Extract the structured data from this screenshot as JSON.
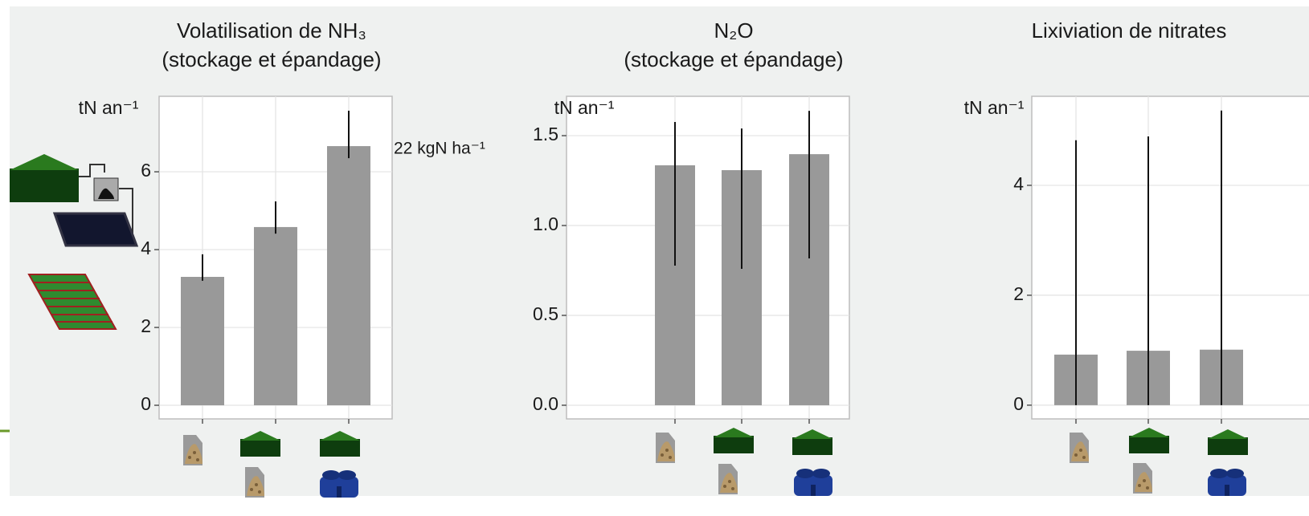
{
  "chart_data": [
    {
      "type": "bar",
      "title": "Volatilisation de NH₃",
      "subtitle": "(stockage et épandage)",
      "ylabel": "tN an⁻¹",
      "annotation": "22 kgN ha⁻¹",
      "categories": [
        null,
        null,
        null
      ],
      "values": [
        3.3,
        4.58,
        6.66
      ],
      "lower": [
        3.2,
        4.41,
        6.35
      ],
      "upper": [
        3.88,
        5.24,
        7.57
      ],
      "color": "#999999",
      "ylim": [
        -0.35,
        7.94
      ],
      "yticks": [
        0,
        2,
        4,
        6
      ],
      "grid": true
    },
    {
      "type": "bar",
      "title": "N₂O",
      "subtitle": "(stockage et épandage)",
      "ylabel": "tN an⁻¹",
      "categories": [
        null,
        null,
        null
      ],
      "values": [
        1.335,
        1.308,
        1.397
      ],
      "lower": [
        0.777,
        0.759,
        0.817
      ],
      "upper": [
        1.576,
        1.54,
        1.638
      ],
      "color": "#999999",
      "ylim": [
        -0.076,
        1.719
      ],
      "yticks": [
        {
          "value": 0,
          "label": "0.0"
        },
        0.5,
        {
          "value": 1,
          "label": "1.0"
        },
        1.5
      ],
      "grid": true
    },
    {
      "type": "bar",
      "title": "Lixiviation de nitrates",
      "ylabel": "tN an⁻¹",
      "categories": [
        null,
        null,
        null
      ],
      "values": [
        0.92,
        0.99,
        1.01
      ],
      "lower": [
        0,
        0,
        0
      ],
      "upper": [
        4.82,
        4.89,
        5.36
      ],
      "color": "#999999",
      "ylim": [
        -0.25,
        5.62
      ],
      "yticks": [
        0,
        2,
        4
      ],
      "grid": true
    }
  ]
}
